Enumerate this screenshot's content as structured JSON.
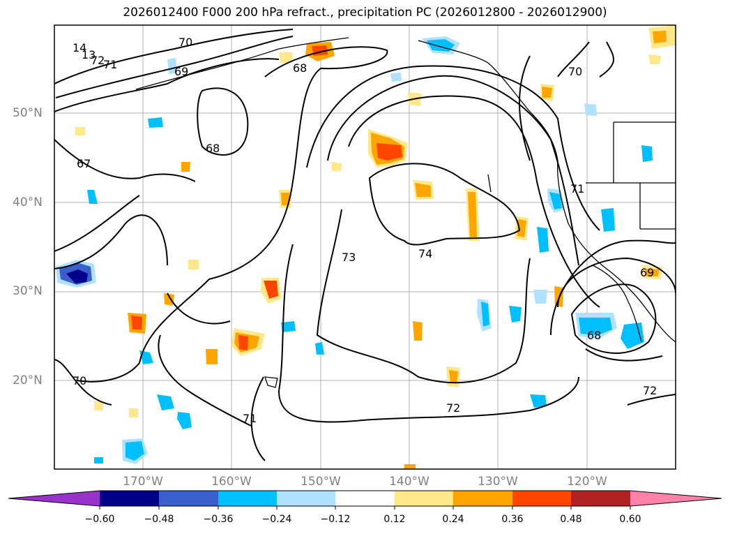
{
  "title": "2026012400 F000 200 hPa refract., precipitation PC (2026012800 - 2026012900)",
  "map": {
    "lat_labels": [
      "50°N",
      "40°N",
      "30°N",
      "20°N"
    ],
    "lon_labels": [
      "170°W",
      "160°W",
      "150°W",
      "140°W",
      "130°W",
      "120°W"
    ],
    "contour_labels": [
      "70",
      "69",
      "68",
      "67",
      "68",
      "73",
      "74",
      "72",
      "71",
      "70",
      "68",
      "69",
      "70",
      "72",
      "71",
      "14",
      "13",
      "72",
      "71"
    ]
  },
  "colorbar": {
    "ticks": [
      "−0.60",
      "−0.48",
      "−0.36",
      "−0.24",
      "−0.12",
      "0.12",
      "0.24",
      "0.36",
      "0.48",
      "0.60"
    ],
    "colors": [
      "#9932cc",
      "#00008b",
      "#3a5fcd",
      "#00bfff",
      "#b0e2ff",
      "#ffffff",
      "#ffe88a",
      "#ffa500",
      "#ff4500",
      "#b22222",
      "#ff82ab"
    ]
  }
}
